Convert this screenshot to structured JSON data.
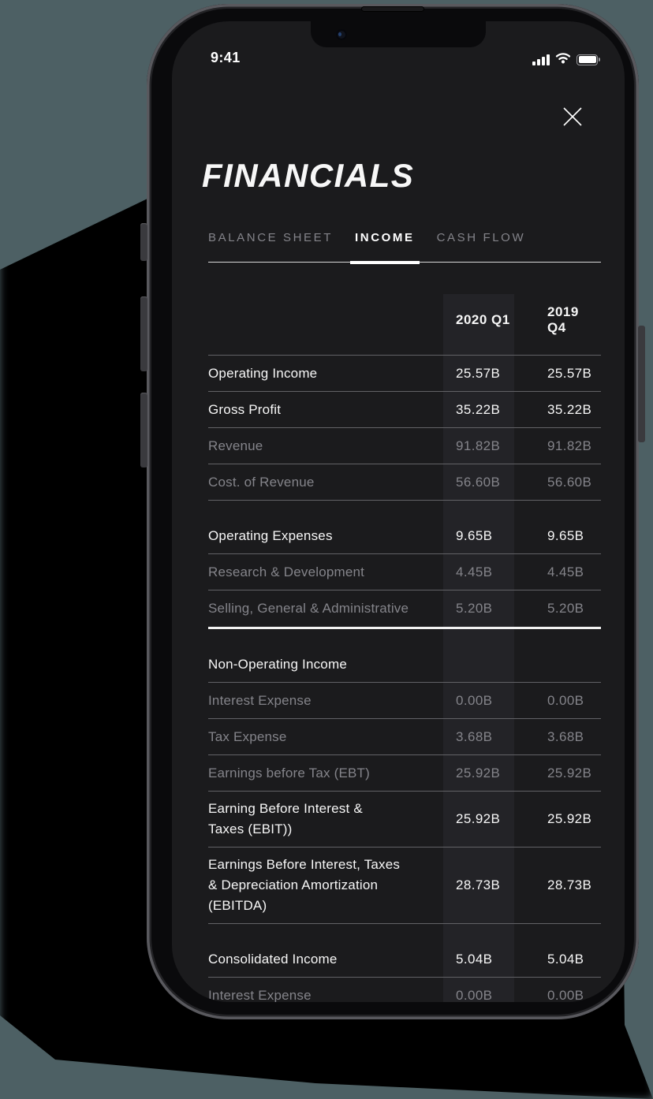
{
  "status_bar": {
    "time": "9:41",
    "icons": [
      "cellular-signal-icon",
      "wifi-icon",
      "battery-icon"
    ]
  },
  "header": {
    "title": "FINANCIALS",
    "close_icon": "close-icon"
  },
  "tabs": [
    {
      "label": "BALANCE SHEET",
      "active": false
    },
    {
      "label": "INCOME",
      "active": true
    },
    {
      "label": "CASH FLOW",
      "active": false
    }
  ],
  "table": {
    "columns": [
      "2020 Q1",
      "2019 Q4"
    ],
    "groups": [
      {
        "rows": [
          {
            "label": "Operating Income",
            "values": [
              "25.57B",
              "25.57B"
            ],
            "emphasis": true
          },
          {
            "label": "Gross Profit",
            "values": [
              "35.22B",
              "35.22B"
            ],
            "emphasis": true
          },
          {
            "label": "Revenue",
            "values": [
              "91.82B",
              "91.82B"
            ],
            "emphasis": false
          },
          {
            "label": "Cost. of Revenue",
            "values": [
              "56.60B",
              "56.60B"
            ],
            "emphasis": false
          }
        ]
      },
      {
        "thick_divider_after": true,
        "rows": [
          {
            "label": "Operating Expenses",
            "values": [
              "9.65B",
              "9.65B"
            ],
            "emphasis": true
          },
          {
            "label": "Research & Development",
            "values": [
              "4.45B",
              "4.45B"
            ],
            "emphasis": false
          },
          {
            "label": "Selling, General & Administrative",
            "values": [
              "5.20B",
              "5.20B"
            ],
            "emphasis": false
          }
        ]
      },
      {
        "rows": [
          {
            "label": "Non-Operating Income",
            "values": [
              "",
              ""
            ],
            "emphasis": true
          },
          {
            "label": "Interest Expense",
            "values": [
              "0.00B",
              "0.00B"
            ],
            "emphasis": false
          },
          {
            "label": "Tax Expense",
            "values": [
              "3.68B",
              "3.68B"
            ],
            "emphasis": false
          },
          {
            "label": "Earnings before Tax (EBT)",
            "values": [
              "25.92B",
              "25.92B"
            ],
            "emphasis": false
          },
          {
            "label": "Earning Before Interest &\nTaxes (EBIT))",
            "values": [
              "25.92B",
              "25.92B"
            ],
            "emphasis": true
          },
          {
            "label": "Earnings Before Interest, Taxes\n& Depreciation Amortization\n(EBITDA)",
            "values": [
              "28.73B",
              "28.73B"
            ],
            "emphasis": true
          }
        ]
      },
      {
        "rows": [
          {
            "label": "Consolidated Income",
            "values": [
              "5.04B",
              "5.04B"
            ],
            "emphasis": true
          },
          {
            "label": "Interest Expense",
            "values": [
              "0.00B",
              "0.00B"
            ],
            "emphasis": false
          }
        ]
      }
    ]
  },
  "colors": {
    "backdrop": "#4d6064",
    "screen_bg": "#1b1b1d",
    "bezel": "#0a0a0c",
    "column_highlight": "#232327",
    "text_primary": "#f7f7f7",
    "text_secondary": "#84848a",
    "hairline": "#626266",
    "divider_strong": "#f2f2f2",
    "tab_underline": "#d9d9d9"
  }
}
